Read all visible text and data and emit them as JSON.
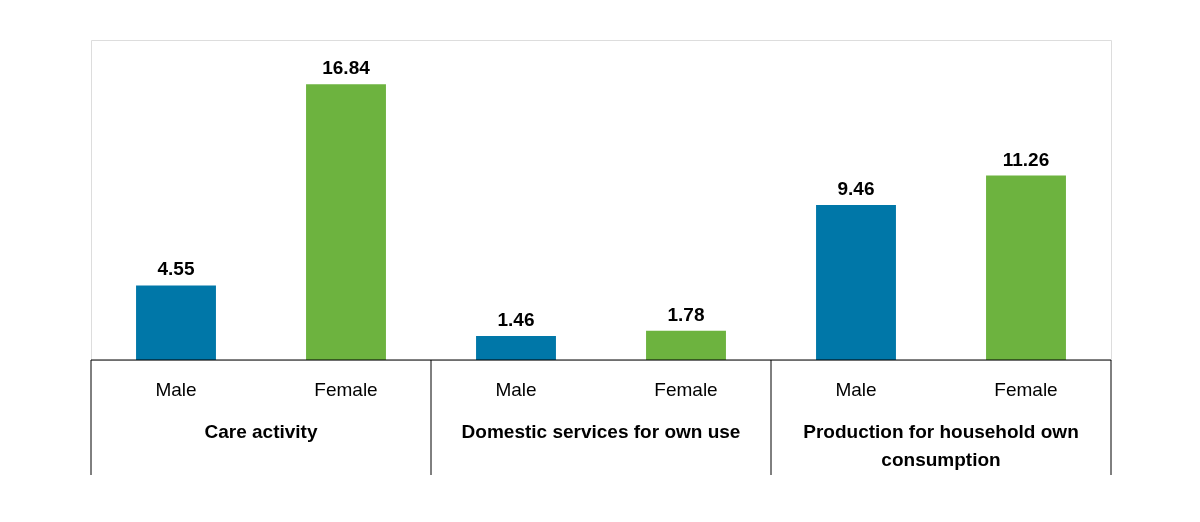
{
  "chart_data": {
    "type": "bar",
    "categories": [
      "Care activity",
      "Domestic services for own use",
      "Production for household own consumption"
    ],
    "series": [
      {
        "name": "Male",
        "color": "#0077a8",
        "values": [
          4.55,
          1.46,
          9.46
        ]
      },
      {
        "name": "Female",
        "color": "#6db33f",
        "values": [
          16.84,
          1.78,
          11.26
        ]
      }
    ],
    "data_labels": true,
    "legend": false,
    "grid": false
  }
}
